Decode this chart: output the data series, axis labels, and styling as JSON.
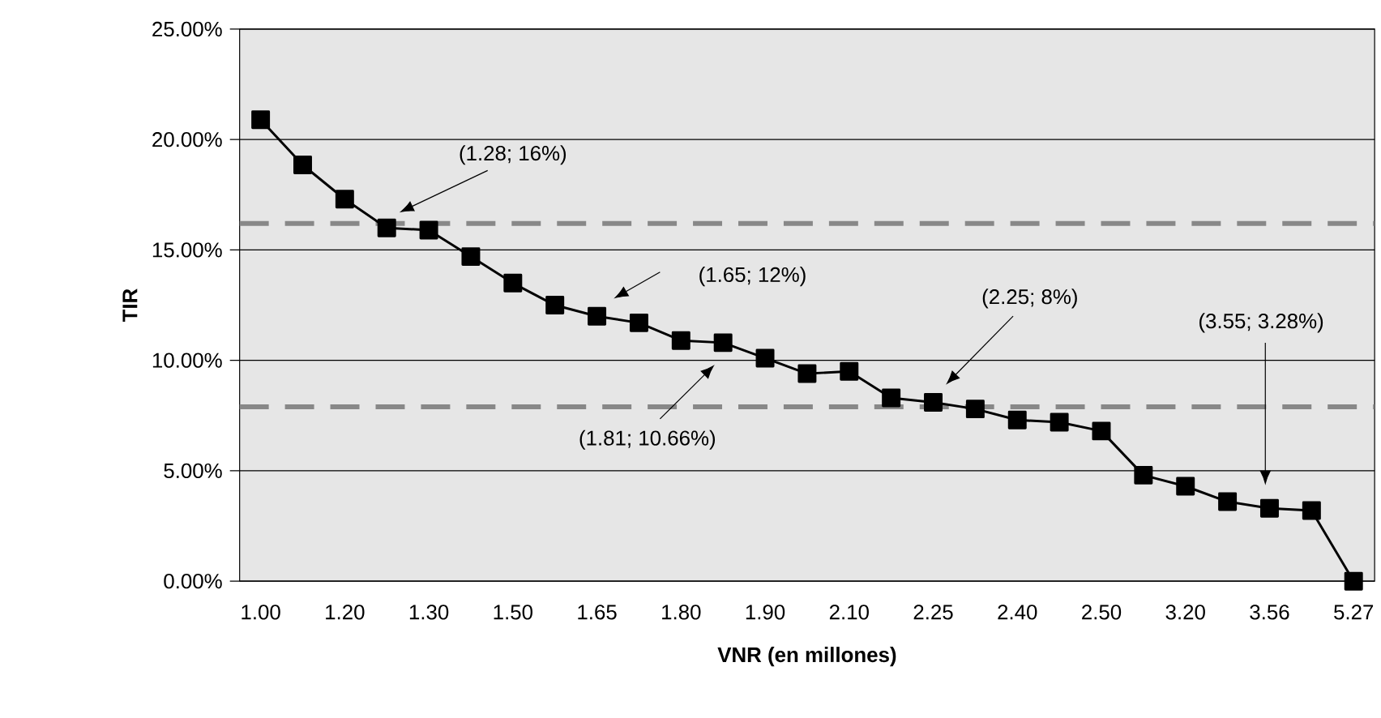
{
  "chart_data": {
    "type": "line",
    "xlabel": "VNR (en millones)",
    "ylabel": "TIR",
    "categories": [
      "1.00",
      null,
      "1.20",
      null,
      "1.30",
      null,
      "1.50",
      null,
      "1.65",
      null,
      "1.80",
      null,
      "1.90",
      null,
      "2.10",
      null,
      "2.25",
      null,
      "2.40",
      null,
      "2.50",
      null,
      "3.20",
      null,
      "3.56",
      null,
      "5.27"
    ],
    "series": [
      {
        "color": "#000000",
        "values": [
          20.9,
          18.85,
          17.3,
          16.0,
          15.9,
          14.7,
          13.5,
          12.5,
          12.0,
          11.7,
          10.9,
          10.8,
          10.1,
          9.4,
          9.5,
          8.3,
          8.1,
          7.8,
          7.3,
          7.2,
          6.8,
          4.8,
          4.3,
          3.6,
          3.3,
          3.2,
          0
        ]
      }
    ],
    "marker": "square",
    "line_style": "solid",
    "grid": "y",
    "ylim": [
      0,
      25
    ],
    "yticks": [
      {
        "value": 0,
        "label": "0.00%"
      },
      {
        "value": 5,
        "label": "5.00%"
      },
      {
        "value": 10,
        "label": "10.00%"
      },
      {
        "value": 15,
        "label": "15.00%"
      },
      {
        "value": 20,
        "label": "20.00%"
      },
      {
        "value": 25,
        "label": "25.00%"
      }
    ],
    "ref_lines": [
      {
        "axis": "y",
        "value": 16.2,
        "color": "#888888",
        "line_style": "dashed"
      },
      {
        "axis": "y",
        "value": 7.9,
        "color": "#888888",
        "line_style": "dashed"
      }
    ],
    "annotations": [
      "(1.28; 16%)",
      "(1.65; 12%)",
      "(1.81; 10.66%)",
      "(2.25; 8%)",
      "(3.55; 3.28%)"
    ]
  }
}
